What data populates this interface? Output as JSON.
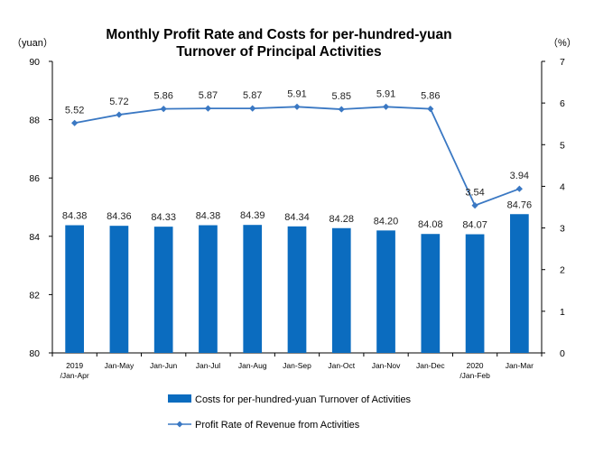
{
  "chart_data": {
    "type": "bar+line",
    "title_lines": [
      "Monthly Profit Rate and Costs for per-hundred-yuan",
      "Turnover of Principal Activities"
    ],
    "left_unit": "（yuan）",
    "right_unit": "（%）",
    "categories": [
      [
        "2019",
        "/Jan-Apr"
      ],
      [
        "Jan-May"
      ],
      [
        "Jan-Jun"
      ],
      [
        "Jan-Jul"
      ],
      [
        "Jan-Aug"
      ],
      [
        "Jan-Sep"
      ],
      [
        "Jan-Oct"
      ],
      [
        "Jan-Nov"
      ],
      [
        "Jan-Dec"
      ],
      [
        "2020",
        "/Jan-Feb"
      ],
      [
        "Jan-Mar"
      ]
    ],
    "left_axis": {
      "ylim": [
        80,
        90
      ],
      "ticks": [
        "80",
        "82",
        "84",
        "86",
        "88",
        "90"
      ]
    },
    "right_axis": {
      "ylim": [
        0,
        7
      ],
      "ticks": [
        "0",
        "1",
        "2",
        "3",
        "4",
        "5",
        "6",
        "7"
      ]
    },
    "series": [
      {
        "name": "Costs for per-hundred-yuan Turnover of  Activities",
        "kind": "bar",
        "axis": "left",
        "color": "#0b6cbf",
        "values": [
          84.38,
          84.36,
          84.33,
          84.38,
          84.39,
          84.34,
          84.28,
          84.2,
          84.08,
          84.07,
          84.76
        ],
        "labels": [
          "84.38",
          "84.36",
          "84.33",
          "84.38",
          "84.39",
          "84.34",
          "84.28",
          "84.20",
          "84.08",
          "84.07",
          "84.76"
        ]
      },
      {
        "name": "Profit Rate of Revenue from Activities",
        "kind": "line",
        "axis": "right",
        "color": "#3a78c3",
        "values": [
          5.52,
          5.72,
          5.86,
          5.87,
          5.87,
          5.91,
          5.85,
          5.91,
          5.86,
          3.54,
          3.94
        ],
        "labels": [
          "5.52",
          "5.72",
          "5.86",
          "5.87",
          "5.87",
          "5.91",
          "5.85",
          "5.91",
          "5.86",
          "3.54",
          "3.94"
        ]
      }
    ],
    "legend_position": "bottom",
    "grid": false
  }
}
